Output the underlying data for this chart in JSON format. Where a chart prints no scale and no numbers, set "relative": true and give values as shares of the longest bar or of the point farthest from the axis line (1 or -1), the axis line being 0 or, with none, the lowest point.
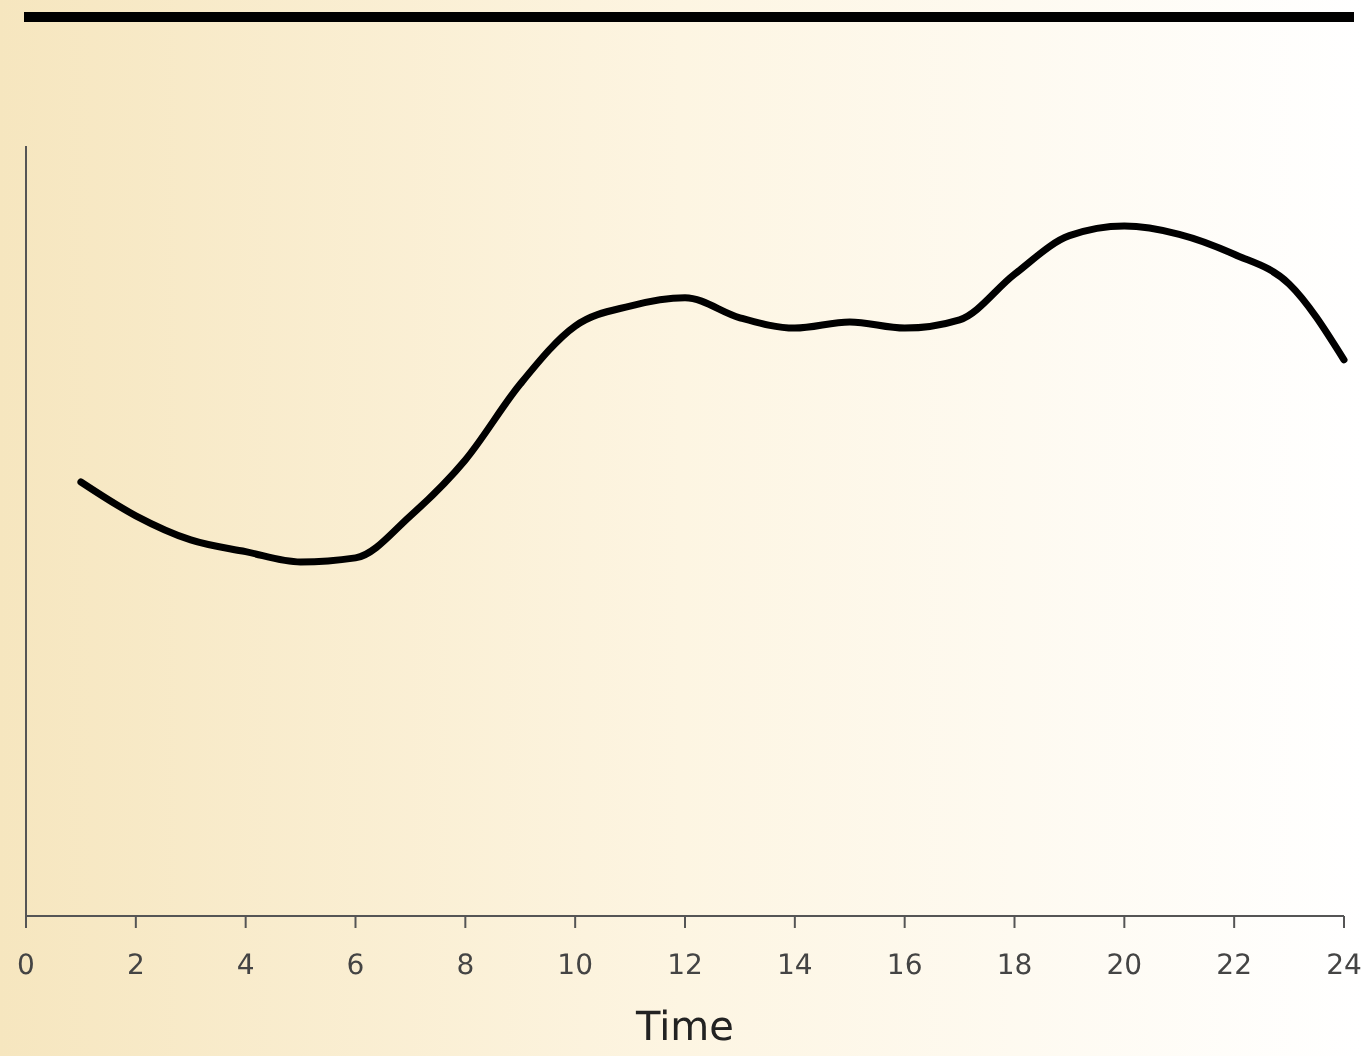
{
  "chart_data": {
    "type": "line",
    "xlabel": "Time",
    "relative": true,
    "x": [
      1,
      2,
      3,
      4,
      5,
      6,
      7,
      8,
      9,
      10,
      11,
      12,
      13,
      14,
      15,
      16,
      17,
      18,
      19,
      20,
      21,
      22,
      23,
      24
    ],
    "series": [
      {
        "color": "#000000",
        "values": [
          0.629,
          0.58,
          0.545,
          0.528,
          0.513,
          0.519,
          0.58,
          0.661,
          0.771,
          0.855,
          0.884,
          0.896,
          0.867,
          0.852,
          0.861,
          0.852,
          0.864,
          0.93,
          0.986,
          1,
          0.988,
          0.959,
          0.916,
          0.806
        ]
      }
    ],
    "xlim": [
      0,
      24
    ],
    "xticks": [
      0,
      2,
      4,
      6,
      8,
      10,
      12,
      14,
      16,
      18,
      20,
      22,
      24
    ],
    "grid": false,
    "marker": "none",
    "line_style": "solid"
  }
}
